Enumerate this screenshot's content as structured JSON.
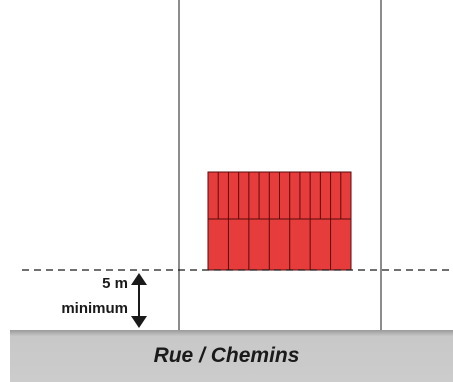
{
  "road": {
    "label": "Rue / Chemins",
    "color": "#c8c8c8"
  },
  "setback": {
    "value": "5 m",
    "note": "minimum"
  },
  "colors": {
    "building_fill": "#e63c3c",
    "building_stroke": "#5a0a0a",
    "lines": "#1a1a1a"
  }
}
